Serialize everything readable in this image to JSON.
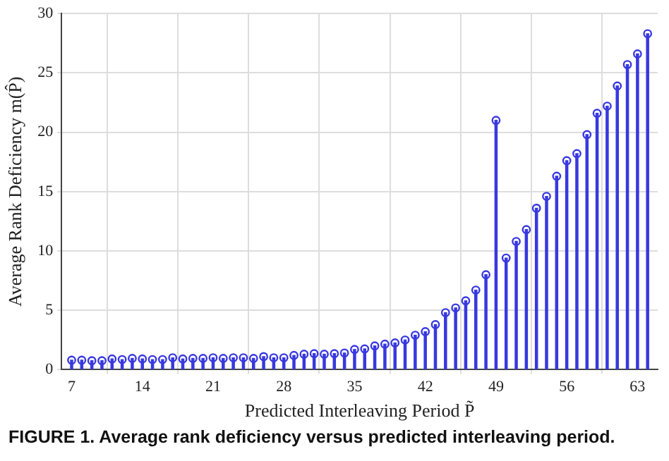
{
  "chart_data": {
    "type": "lollipop",
    "xlabel": "Predicted Interleaving Period P̃",
    "ylabel": "Average Rank Deficiency m(P̂)",
    "annotations": [
      "FIGURE 1. Average rank deficiency versus predicted interleaving period."
    ],
    "x": [
      7,
      8,
      9,
      10,
      11,
      12,
      13,
      14,
      15,
      16,
      17,
      18,
      19,
      20,
      21,
      22,
      23,
      24,
      25,
      26,
      27,
      28,
      29,
      30,
      31,
      32,
      33,
      34,
      35,
      36,
      37,
      38,
      39,
      40,
      41,
      42,
      43,
      44,
      45,
      46,
      47,
      48,
      49,
      50,
      51,
      52,
      53,
      54,
      55,
      56,
      57,
      58,
      59,
      60,
      61,
      62,
      63,
      64
    ],
    "series": [
      {
        "color": "#3838e0",
        "values": [
          0.8,
          0.8,
          0.75,
          0.75,
          0.9,
          0.85,
          0.95,
          0.9,
          0.85,
          0.85,
          1.0,
          0.9,
          0.95,
          0.95,
          1.0,
          0.95,
          1.0,
          1.0,
          0.95,
          1.1,
          1.0,
          1.0,
          1.2,
          1.3,
          1.35,
          1.3,
          1.35,
          1.4,
          1.7,
          1.75,
          2.0,
          2.15,
          2.25,
          2.5,
          2.9,
          3.2,
          3.8,
          4.8,
          5.2,
          5.8,
          6.7,
          8.0,
          21.0,
          9.4,
          10.8,
          11.8,
          13.6,
          14.6,
          16.3,
          17.6,
          18.2,
          19.8,
          21.6,
          22.2,
          23.9,
          25.7,
          26.6,
          28.3
        ]
      }
    ],
    "xlim": [
      6,
      65
    ],
    "xticks": [
      7,
      14,
      21,
      28,
      35,
      42,
      49,
      56,
      63
    ],
    "ylim": [
      0,
      30
    ],
    "yticks": [
      0,
      5,
      10,
      15,
      20,
      25,
      30
    ],
    "grid": true,
    "legend": false,
    "marker": "circle"
  }
}
